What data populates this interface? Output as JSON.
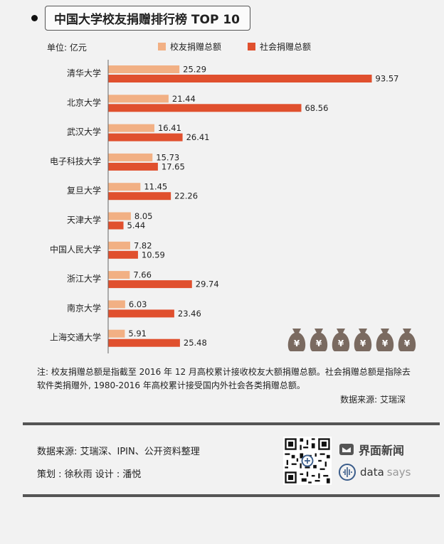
{
  "header": {
    "title": "中国大学校友捐赠排行榜 TOP 10"
  },
  "unit_label": "单位: 亿元",
  "colors": {
    "alumni": "#f2b084",
    "social": "#e0502e",
    "bag": "#7a6a60"
  },
  "chart_data": {
    "type": "bar",
    "orientation": "horizontal",
    "categories": [
      "清华大学",
      "北京大学",
      "武汉大学",
      "电子科技大学",
      "复旦大学",
      "天津大学",
      "中国人民大学",
      "浙江大学",
      "南京大学",
      "上海交通大学"
    ],
    "series": [
      {
        "name": "校友捐赠总额",
        "values": [
          25.29,
          21.44,
          16.41,
          15.73,
          11.45,
          8.05,
          7.82,
          7.66,
          6.03,
          5.91
        ],
        "labels": [
          "25.29",
          "21.44",
          "16.41",
          "15.73",
          "11.45",
          "8.05",
          "7.82",
          "7.66",
          "6.03",
          "5.91"
        ]
      },
      {
        "name": "社会捐赠总额",
        "values": [
          93.57,
          68.56,
          26.41,
          17.65,
          22.26,
          5.44,
          10.59,
          29.74,
          23.46,
          25.48
        ],
        "labels": [
          "93.57",
          "68.56",
          "26.41",
          "17.65",
          "22.26",
          "5.44",
          "10.59",
          "29.74",
          "23.46",
          "25.48"
        ]
      }
    ],
    "xlim": [
      0,
      100
    ],
    "legend_position": "top",
    "grid": false
  },
  "decoration": {
    "bag_symbol": "¥",
    "bag_count": 6,
    "icon": "money-bag-icon"
  },
  "note": {
    "text": "注: 校友捐赠总额是指截至 2016 年 12 月高校累计接收校友大额捐赠总额。社会捐赠总额是指除去软件类捐赠外, 1980-2016 年高校累计接受国内外社会各类捐赠总额。",
    "source": "数据来源: 艾瑞深"
  },
  "footer": {
    "source": "数据来源: 艾瑞深、IPIN、公开资料整理",
    "credit": "策划 : 徐秋雨     设计 : 潘悦",
    "brand1": "界面新闻",
    "brand2_a": "data",
    "brand2_b": "says"
  }
}
